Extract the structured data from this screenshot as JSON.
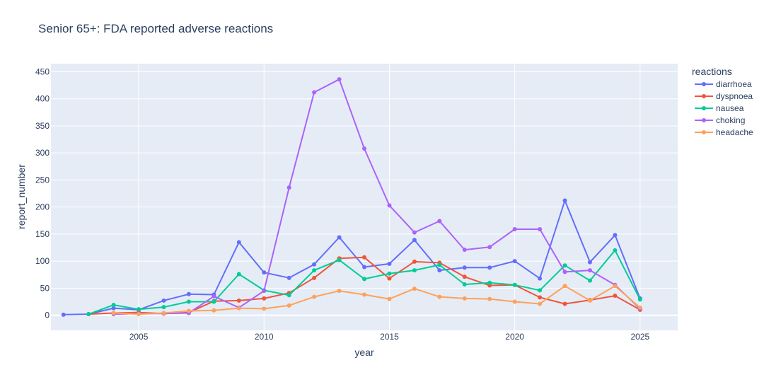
{
  "chart_data": {
    "type": "line",
    "title": "Senior 65+: FDA reported adverse reactions",
    "xlabel": "year",
    "ylabel": "report_number",
    "xlim": [
      2001.5,
      2026.5
    ],
    "ylim": [
      -28,
      465
    ],
    "x_ticks": [
      2005,
      2010,
      2015,
      2020,
      2025
    ],
    "y_ticks": [
      0,
      50,
      100,
      150,
      200,
      250,
      300,
      350,
      400,
      450
    ],
    "grid": true,
    "legend_title": "reactions",
    "legend_position": "right",
    "background_color": "#e5ecf6",
    "series": [
      {
        "name": "diarrhoea",
        "color": "#636efa",
        "points": [
          [
            2002,
            1
          ],
          [
            2003,
            2
          ],
          [
            2004,
            13
          ],
          [
            2005,
            10
          ],
          [
            2006,
            27
          ],
          [
            2007,
            39
          ],
          [
            2008,
            38
          ],
          [
            2009,
            135
          ],
          [
            2010,
            79
          ],
          [
            2011,
            69
          ],
          [
            2012,
            94
          ],
          [
            2013,
            144
          ],
          [
            2014,
            89
          ],
          [
            2015,
            95
          ],
          [
            2016,
            139
          ],
          [
            2017,
            83
          ],
          [
            2018,
            88
          ],
          [
            2019,
            88
          ],
          [
            2020,
            100
          ],
          [
            2021,
            68
          ],
          [
            2022,
            212
          ],
          [
            2023,
            98
          ],
          [
            2024,
            148
          ],
          [
            2025,
            31
          ]
        ]
      },
      {
        "name": "dyspnoea",
        "color": "#EF553B",
        "points": [
          [
            2003,
            2
          ],
          [
            2004,
            4
          ],
          [
            2005,
            5
          ],
          [
            2006,
            3
          ],
          [
            2007,
            5
          ],
          [
            2008,
            26
          ],
          [
            2009,
            27
          ],
          [
            2010,
            31
          ],
          [
            2011,
            41
          ],
          [
            2012,
            69
          ],
          [
            2013,
            105
          ],
          [
            2014,
            107
          ],
          [
            2015,
            68
          ],
          [
            2016,
            99
          ],
          [
            2017,
            97
          ],
          [
            2018,
            71
          ],
          [
            2019,
            55
          ],
          [
            2020,
            56
          ],
          [
            2021,
            33
          ],
          [
            2022,
            21
          ],
          [
            2023,
            28
          ],
          [
            2024,
            36
          ],
          [
            2025,
            10
          ]
        ]
      },
      {
        "name": "nausea",
        "color": "#00cc96",
        "points": [
          [
            2003,
            2
          ],
          [
            2004,
            19
          ],
          [
            2005,
            11
          ],
          [
            2006,
            15
          ],
          [
            2007,
            25
          ],
          [
            2008,
            25
          ],
          [
            2009,
            76
          ],
          [
            2010,
            46
          ],
          [
            2011,
            37
          ],
          [
            2012,
            83
          ],
          [
            2013,
            102
          ],
          [
            2014,
            67
          ],
          [
            2015,
            77
          ],
          [
            2016,
            83
          ],
          [
            2017,
            93
          ],
          [
            2018,
            57
          ],
          [
            2019,
            60
          ],
          [
            2020,
            56
          ],
          [
            2021,
            46
          ],
          [
            2022,
            92
          ],
          [
            2023,
            64
          ],
          [
            2024,
            120
          ],
          [
            2025,
            29
          ]
        ]
      },
      {
        "name": "choking",
        "color": "#ab63fa",
        "points": [
          [
            2004,
            2
          ],
          [
            2005,
            3
          ],
          [
            2006,
            3
          ],
          [
            2007,
            4
          ],
          [
            2008,
            35
          ],
          [
            2009,
            14
          ],
          [
            2010,
            45
          ],
          [
            2011,
            236
          ],
          [
            2012,
            412
          ],
          [
            2013,
            436
          ],
          [
            2014,
            308
          ],
          [
            2015,
            203
          ],
          [
            2016,
            153
          ],
          [
            2017,
            174
          ],
          [
            2018,
            121
          ],
          [
            2019,
            126
          ],
          [
            2020,
            159
          ],
          [
            2021,
            159
          ],
          [
            2022,
            80
          ],
          [
            2023,
            83
          ],
          [
            2024,
            56
          ],
          [
            2025,
            12
          ]
        ]
      },
      {
        "name": "headache",
        "color": "#FFA15A",
        "points": [
          [
            2004,
            4
          ],
          [
            2005,
            2
          ],
          [
            2006,
            4
          ],
          [
            2007,
            8
          ],
          [
            2008,
            9
          ],
          [
            2009,
            13
          ],
          [
            2010,
            12
          ],
          [
            2011,
            18
          ],
          [
            2012,
            34
          ],
          [
            2013,
            45
          ],
          [
            2014,
            38
          ],
          [
            2015,
            30
          ],
          [
            2016,
            49
          ],
          [
            2017,
            34
          ],
          [
            2018,
            31
          ],
          [
            2019,
            30
          ],
          [
            2020,
            25
          ],
          [
            2021,
            21
          ],
          [
            2022,
            54
          ],
          [
            2023,
            27
          ],
          [
            2024,
            54
          ],
          [
            2025,
            14
          ]
        ]
      }
    ]
  }
}
